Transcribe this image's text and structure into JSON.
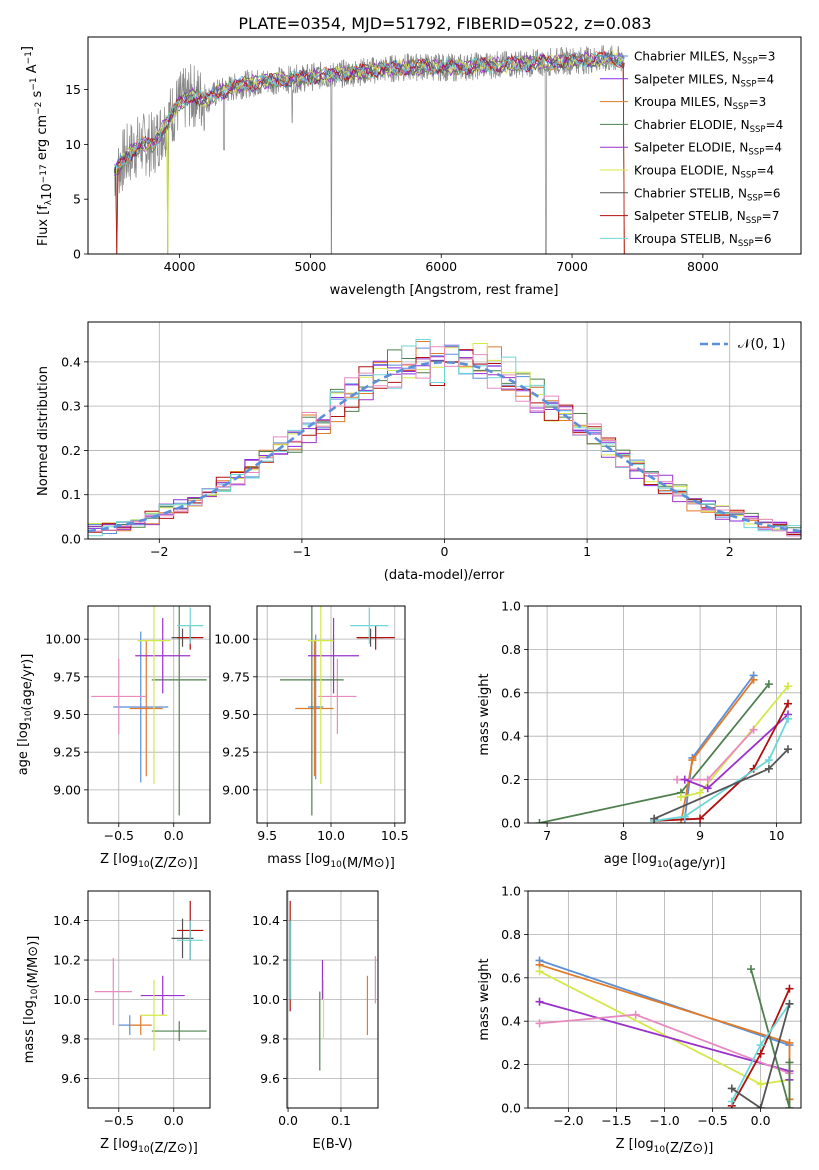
{
  "figure_title": "PLATE=0354, MJD=51792, FIBERID=0522, z=0.083",
  "colors": {
    "Chabrier MILES": "#5b8fd9",
    "Salpeter MILES": "#8a2be2",
    "Kroupa MILES": "#e07b2a",
    "Chabrier ELODIE": "#4f7f4f",
    "Salpeter ELODIE": "#9932cc",
    "Kroupa ELODIE": "#d4e84a",
    "Chabrier STELIB": "#555555",
    "Salpeter STELIB": "#b01010",
    "Kroupa STELIB": "#6ed6d6",
    "pink": "#e88ac0",
    "gaussian": "#5b8fd9",
    "spectrum": "#888888"
  },
  "chart_data": [
    {
      "id": "spectrum",
      "type": "line",
      "title": "PLATE=0354, MJD=51792, FIBERID=0522, z=0.083",
      "xlabel": "wavelength [Angstrom, rest frame]",
      "ylabel_parts": [
        "Flux [f",
        "λ",
        "10",
        "−17",
        " erg cm",
        "−2",
        " s",
        "−1",
        " A",
        "−1",
        "]"
      ],
      "xlim": [
        3300,
        8750
      ],
      "ylim": [
        0,
        19.8
      ],
      "xticks": [
        4000,
        5000,
        6000,
        7000,
        8000
      ],
      "yticks": [
        0,
        5,
        10,
        15
      ],
      "grid": false,
      "legend_position": "top-right",
      "legend": [
        {
          "name": "Chabrier MILES",
          "n": "3"
        },
        {
          "name": "Salpeter MILES",
          "n": "4"
        },
        {
          "name": "Kroupa MILES",
          "n": "3"
        },
        {
          "name": "Chabrier ELODIE",
          "n": "4"
        },
        {
          "name": "Salpeter ELODIE",
          "n": "4"
        },
        {
          "name": "Kroupa ELODIE",
          "n": "4"
        },
        {
          "name": "Chabrier STELIB",
          "n": "6"
        },
        {
          "name": "Salpeter STELIB",
          "n": "7"
        },
        {
          "name": "Kroupa STELIB",
          "n": "6"
        }
      ],
      "continuum": {
        "x": [
          3500,
          3600,
          3700,
          3800,
          3900,
          4000,
          4100,
          4200,
          4300,
          4500,
          4700,
          4900,
          5100,
          5300,
          5500,
          5700,
          5900,
          6100,
          6300,
          6500,
          6700,
          6900,
          7100,
          7300,
          7400
        ],
        "y": [
          7.5,
          9.0,
          10.0,
          10.0,
          12.0,
          13.8,
          14.5,
          14.0,
          14.8,
          15.5,
          15.8,
          16.0,
          16.3,
          16.5,
          16.8,
          17.0,
          17.1,
          17.0,
          17.2,
          17.3,
          17.4,
          17.6,
          17.7,
          17.8,
          17.6
        ]
      },
      "dips": [
        {
          "x": 3520,
          "y": 0
        },
        {
          "x": 3910,
          "y": 0
        },
        {
          "x": 4340,
          "y": 9.5
        },
        {
          "x": 4860,
          "y": 12.0
        },
        {
          "x": 5160,
          "y": 0
        },
        {
          "x": 6800,
          "y": 0
        },
        {
          "x": 7400,
          "y": 0
        }
      ]
    },
    {
      "id": "residuals",
      "type": "histogram",
      "xlabel": "(data-model)/error",
      "ylabel": "Normed distribution",
      "xlim": [
        -2.5,
        2.5
      ],
      "ylim": [
        0,
        0.49
      ],
      "xticks": [
        -2,
        -1,
        0,
        1,
        2
      ],
      "yticks": [
        0.0,
        0.1,
        0.2,
        0.3,
        0.4
      ],
      "grid": true,
      "legend": [
        "𝒩(0, 1)"
      ],
      "legend_position": "top-right",
      "bin_width": 0.1,
      "reference_curve": "normal(0,1)"
    },
    {
      "id": "age-vs-Z",
      "type": "scatter",
      "xlabel": "Z [log10(Z/Z⊙)]",
      "ylabel": "age  [log10(age/yr)]",
      "xlim": [
        -0.78,
        0.33
      ],
      "ylim": [
        8.78,
        10.22
      ],
      "xticks": [
        -0.5,
        0.0
      ],
      "yticks": [
        9.0,
        9.25,
        9.5,
        9.75,
        10.0
      ],
      "grid": true,
      "points": [
        {
          "c": "Chabrier MILES",
          "x": -0.3,
          "y": 9.55,
          "xerr": 0.25,
          "yerr": 0.5
        },
        {
          "c": "Kroupa MILES",
          "x": -0.25,
          "y": 9.54,
          "xerr": 0.15,
          "yerr": 0.45
        },
        {
          "c": "pink",
          "x": -0.5,
          "y": 9.62,
          "xerr": 0.25,
          "yerr": 0.25
        },
        {
          "c": "Chabrier ELODIE",
          "x": 0.05,
          "y": 9.73,
          "xerr": 0.25,
          "yerr": 0.9
        },
        {
          "c": "Salpeter ELODIE",
          "x": -0.1,
          "y": 9.89,
          "xerr": 0.25,
          "yerr": 0.25
        },
        {
          "c": "Kroupa ELODIE",
          "x": -0.18,
          "y": 9.99,
          "xerr": 0.15,
          "yerr": 0.95
        },
        {
          "c": "Chabrier STELIB",
          "x": 0.08,
          "y": 10.01,
          "xerr": 0.1,
          "yerr": 0.06
        },
        {
          "c": "Salpeter STELIB",
          "x": 0.15,
          "y": 10.01,
          "xerr": 0.12,
          "yerr": 0.08
        },
        {
          "c": "Kroupa STELIB",
          "x": 0.15,
          "y": 10.09,
          "xerr": 0.12,
          "yerr": 0.12
        }
      ]
    },
    {
      "id": "age-vs-mass",
      "type": "scatter",
      "xlabel": "mass [log10(M/M⊙)]",
      "ylabel": "",
      "xlim": [
        9.42,
        10.58
      ],
      "ylim": [
        8.78,
        10.22
      ],
      "xticks": [
        9.5,
        10.0,
        10.5
      ],
      "yticks": [
        9.0,
        9.25,
        9.5,
        9.75,
        10.0
      ],
      "grid": true,
      "points": [
        {
          "c": "Chabrier MILES",
          "x": 9.88,
          "y": 9.55,
          "xerr": 0.06,
          "yerr": 0.48
        },
        {
          "c": "Kroupa MILES",
          "x": 9.87,
          "y": 9.54,
          "xerr": 0.15,
          "yerr": 0.45
        },
        {
          "c": "pink",
          "x": 10.05,
          "y": 9.62,
          "xerr": 0.15,
          "yerr": 0.25
        },
        {
          "c": "Chabrier ELODIE",
          "x": 9.85,
          "y": 9.73,
          "xerr": 0.25,
          "yerr": 0.9
        },
        {
          "c": "Salpeter ELODIE",
          "x": 10.02,
          "y": 9.89,
          "xerr": 0.2,
          "yerr": 0.25
        },
        {
          "c": "Kroupa ELODIE",
          "x": 9.92,
          "y": 9.99,
          "xerr": 0.1,
          "yerr": 0.95
        },
        {
          "c": "Chabrier STELIB",
          "x": 10.31,
          "y": 10.01,
          "xerr": 0.1,
          "yerr": 0.06
        },
        {
          "c": "Salpeter STELIB",
          "x": 10.35,
          "y": 10.01,
          "xerr": 0.15,
          "yerr": 0.08
        },
        {
          "c": "Kroupa STELIB",
          "x": 10.3,
          "y": 10.09,
          "xerr": 0.15,
          "yerr": 0.12
        }
      ]
    },
    {
      "id": "weight-vs-age",
      "type": "line",
      "xlabel": "age  [log10(age/yr)]",
      "ylabel": "mass weight",
      "xlim": [
        6.75,
        10.32
      ],
      "ylim": [
        0,
        1.0
      ],
      "xticks": [
        7,
        8,
        9,
        10
      ],
      "yticks": [
        0.0,
        0.2,
        0.4,
        0.6,
        0.8,
        1.0
      ],
      "grid": true,
      "series": [
        {
          "c": "Chabrier ELODIE",
          "x": [
            6.9,
            8.75,
            9.9
          ],
          "y": [
            0.0,
            0.14,
            0.64
          ]
        },
        {
          "c": "Chabrier MILES",
          "x": [
            8.8,
            8.9,
            9.7
          ],
          "y": [
            0.02,
            0.3,
            0.68
          ]
        },
        {
          "c": "Kroupa MILES",
          "x": [
            8.75,
            8.9,
            9.7
          ],
          "y": [
            0.0,
            0.29,
            0.66
          ]
        },
        {
          "c": "Kroupa ELODIE",
          "x": [
            8.75,
            9.0,
            10.15
          ],
          "y": [
            0.12,
            0.14,
            0.63
          ]
        },
        {
          "c": "pink",
          "x": [
            8.7,
            9.1,
            9.7
          ],
          "y": [
            0.2,
            0.2,
            0.43
          ]
        },
        {
          "c": "Salpeter ELODIE",
          "x": [
            8.8,
            9.1,
            10.15
          ],
          "y": [
            0.2,
            0.16,
            0.5
          ]
        },
        {
          "c": "Salpeter STELIB",
          "x": [
            8.4,
            9.0,
            9.7,
            10.15
          ],
          "y": [
            0.01,
            0.02,
            0.25,
            0.55
          ]
        },
        {
          "c": "Kroupa STELIB",
          "x": [
            8.4,
            8.8,
            9.9,
            10.15
          ],
          "y": [
            0.01,
            0.03,
            0.29,
            0.48
          ]
        },
        {
          "c": "Chabrier STELIB",
          "x": [
            8.4,
            9.9,
            10.15
          ],
          "y": [
            0.02,
            0.25,
            0.34
          ]
        }
      ]
    },
    {
      "id": "mass-vs-Z",
      "type": "scatter",
      "xlabel": "Z [log10(Z/Z⊙)]",
      "ylabel": "mass [log10(M/M⊙)]",
      "xlim": [
        -0.78,
        0.33
      ],
      "ylim": [
        9.45,
        10.55
      ],
      "xticks": [
        -0.5,
        0.0
      ],
      "yticks": [
        9.6,
        9.8,
        10.0,
        10.2,
        10.4
      ],
      "grid": true,
      "points": [
        {
          "c": "Chabrier MILES",
          "x": -0.4,
          "y": 9.87,
          "xerr": 0.1,
          "yerr": 0.05
        },
        {
          "c": "Kroupa MILES",
          "x": -0.3,
          "y": 9.87,
          "xerr": 0.1,
          "yerr": 0.05
        },
        {
          "c": "pink",
          "x": -0.55,
          "y": 10.04,
          "xerr": 0.17,
          "yerr": 0.17
        },
        {
          "c": "Chabrier ELODIE",
          "x": 0.05,
          "y": 9.84,
          "xerr": 0.25,
          "yerr": 0.05
        },
        {
          "c": "Salpeter ELODIE",
          "x": -0.1,
          "y": 10.02,
          "xerr": 0.2,
          "yerr": 0.1
        },
        {
          "c": "Kroupa ELODIE",
          "x": -0.18,
          "y": 9.92,
          "xerr": 0.12,
          "yerr": 0.18
        },
        {
          "c": "Chabrier STELIB",
          "x": 0.08,
          "y": 10.31,
          "xerr": 0.1,
          "yerr": 0.1
        },
        {
          "c": "Salpeter STELIB",
          "x": 0.15,
          "y": 10.35,
          "xerr": 0.12,
          "yerr": 0.15
        },
        {
          "c": "Kroupa STELIB",
          "x": 0.15,
          "y": 10.3,
          "xerr": 0.12,
          "yerr": 0.1
        }
      ]
    },
    {
      "id": "mass-vs-ebv",
      "type": "scatter",
      "xlabel": "E(B-V)",
      "ylabel": "",
      "xlim": [
        -0.002,
        0.17
      ],
      "ylim": [
        9.45,
        10.55
      ],
      "xticks": [
        0.0,
        0.1
      ],
      "yticks": [
        9.6,
        9.8,
        10.0,
        10.2,
        10.4
      ],
      "grid": true,
      "points": [
        {
          "c": "Salpeter STELIB",
          "x": 0.004,
          "y": 10.22,
          "xerr": 0,
          "yerr": 0.28
        },
        {
          "c": "Kroupa STELIB",
          "x": 0.005,
          "y": 10.2,
          "xerr": 0,
          "yerr": 0.2
        },
        {
          "c": "Chabrier ELODIE",
          "x": 0.06,
          "y": 9.84,
          "xerr": 0,
          "yerr": 0.2
        },
        {
          "c": "Salpeter ELODIE",
          "x": 0.065,
          "y": 10.1,
          "xerr": 0,
          "yerr": 0.1
        },
        {
          "c": "Kroupa ELODIE",
          "x": 0.067,
          "y": 9.95,
          "xerr": 0,
          "yerr": 0.15
        },
        {
          "c": "Kroupa MILES",
          "x": 0.15,
          "y": 9.97,
          "xerr": 0,
          "yerr": 0.15
        },
        {
          "c": "pink",
          "x": 0.165,
          "y": 10.1,
          "xerr": 0,
          "yerr": 0.12
        }
      ]
    },
    {
      "id": "weight-vs-Z",
      "type": "line",
      "xlabel": "Z [log10(Z/Z⊙)]",
      "ylabel": "mass weight",
      "xlim": [
        -2.42,
        0.42
      ],
      "ylim": [
        0,
        1.0
      ],
      "xticks": [
        -2.0,
        -1.5,
        -1.0,
        -0.5,
        0.0
      ],
      "yticks": [
        0.0,
        0.2,
        0.4,
        0.6,
        0.8,
        1.0
      ],
      "grid": true,
      "series": [
        {
          "c": "Chabrier MILES",
          "x": [
            -2.3,
            0.3
          ],
          "y": [
            0.68,
            0.29
          ]
        },
        {
          "c": "Kroupa MILES",
          "x": [
            -2.3,
            0.3,
            0.3
          ],
          "y": [
            0.66,
            0.3,
            0.04
          ]
        },
        {
          "c": "Kroupa ELODIE",
          "x": [
            -2.3,
            0.0,
            0.3
          ],
          "y": [
            0.63,
            0.11,
            0.13
          ]
        },
        {
          "c": "Salpeter ELODIE",
          "x": [
            -2.3,
            0.3,
            0.3
          ],
          "y": [
            0.49,
            0.17,
            0.13
          ]
        },
        {
          "c": "pink",
          "x": [
            -2.3,
            -1.3,
            0.3
          ],
          "y": [
            0.39,
            0.43,
            0.16
          ]
        },
        {
          "c": "Chabrier ELODIE",
          "x": [
            -0.1,
            0.3,
            0.3
          ],
          "y": [
            0.64,
            0.0,
            0.21
          ]
        },
        {
          "c": "Salpeter STELIB",
          "x": [
            -0.3,
            0.0,
            0.3
          ],
          "y": [
            0.01,
            0.25,
            0.55
          ]
        },
        {
          "c": "Kroupa STELIB",
          "x": [
            -0.3,
            0.0,
            0.3
          ],
          "y": [
            0.03,
            0.29,
            0.48
          ]
        },
        {
          "c": "Chabrier STELIB",
          "x": [
            -0.3,
            0.0,
            0.3
          ],
          "y": [
            0.09,
            0.0,
            0.48
          ]
        }
      ]
    }
  ]
}
